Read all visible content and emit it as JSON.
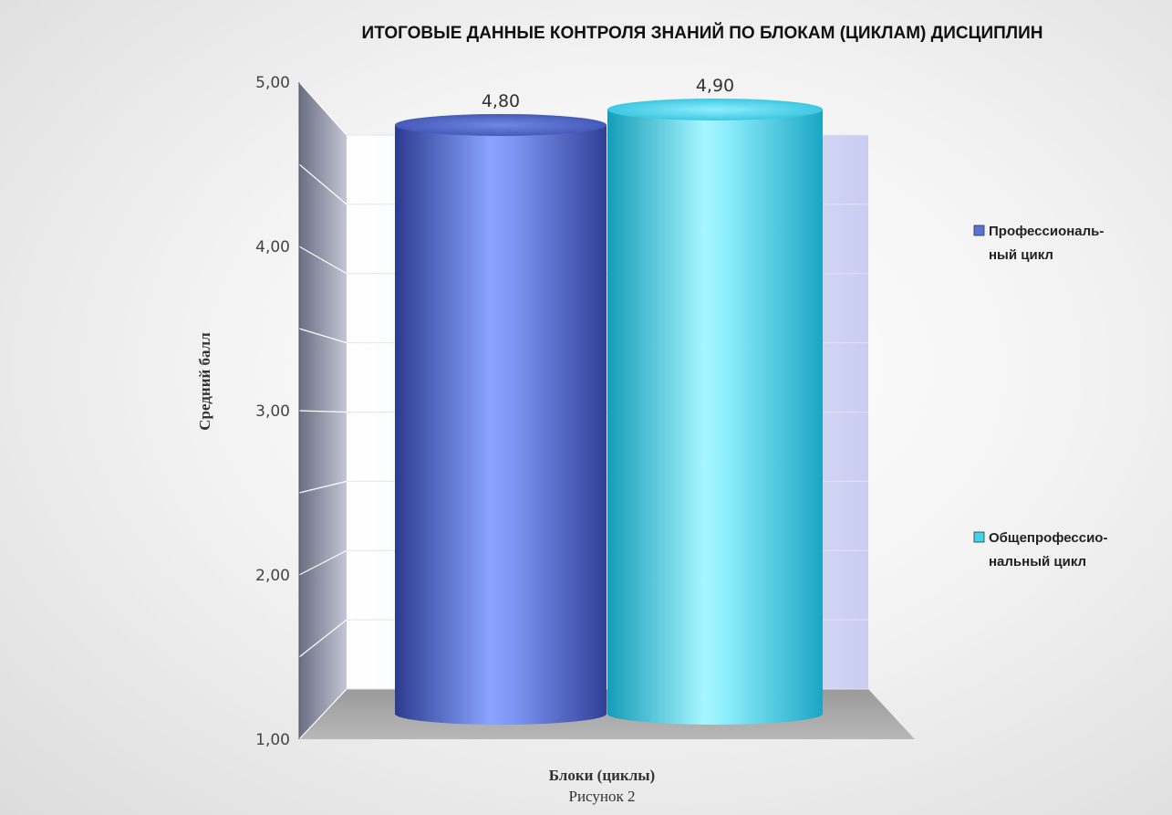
{
  "chart_data": {
    "type": "bar",
    "style": "3d-cylinder",
    "title": "ИТОГОВЫЕ ДАННЫЕ КОНТРОЛЯ ЗНАНИЙ ПО БЛОКАМ (ЦИКЛАМ) ДИСЦИПЛИН",
    "xlabel": "Блоки (циклы)",
    "ylabel": "Средний балл",
    "ylim": [
      1,
      5
    ],
    "y_ticks": [
      "1,00",
      "2,00",
      "3,00",
      "4,00",
      "5,00"
    ],
    "grid": true,
    "legend_position": "right",
    "series": [
      {
        "name": "Профессиональный цикл",
        "legend_lines": [
          "Профессиональ-",
          "ный цикл"
        ],
        "value": 4.8,
        "label": "4,80",
        "color": "#5b72d9"
      },
      {
        "name": "Общепрофессиональный цикл",
        "legend_lines": [
          "Общепрофессио-",
          "нальный цикл"
        ],
        "value": 4.9,
        "label": "4,90",
        "color": "#3fd4ee"
      }
    ]
  },
  "figure_caption": "Рисунок 2"
}
